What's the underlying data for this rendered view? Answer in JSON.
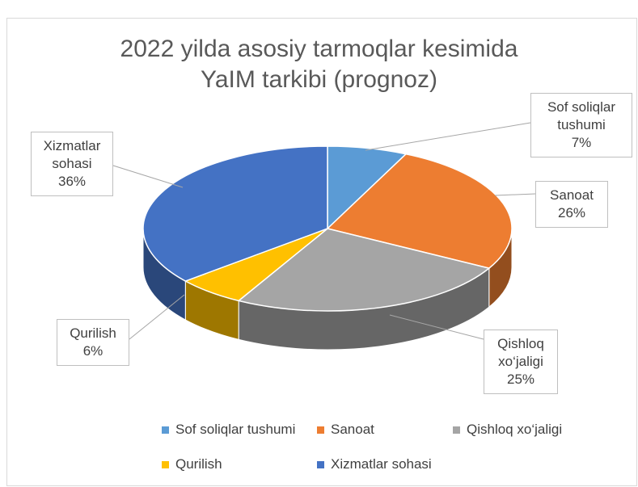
{
  "chart_data": {
    "type": "pie3d",
    "title": "2022 yilda asosiy tarmoqlar kesimida YaIM tarkibi (prognoz)",
    "categories": [
      "Sof soliqlar tushumi",
      "Sanoat",
      "Qishloq xo‘jaligi",
      "Qurilish",
      "Xizmatlar sohasi"
    ],
    "values": [
      7,
      26,
      25,
      6,
      36
    ],
    "value_labels": [
      "7%",
      "26%",
      "25%",
      "6%",
      "36%"
    ],
    "colors": [
      "#5b9bd5",
      "#ed7d31",
      "#a5a5a5",
      "#ffc000",
      "#4472c4"
    ],
    "legend": "bottom"
  }
}
